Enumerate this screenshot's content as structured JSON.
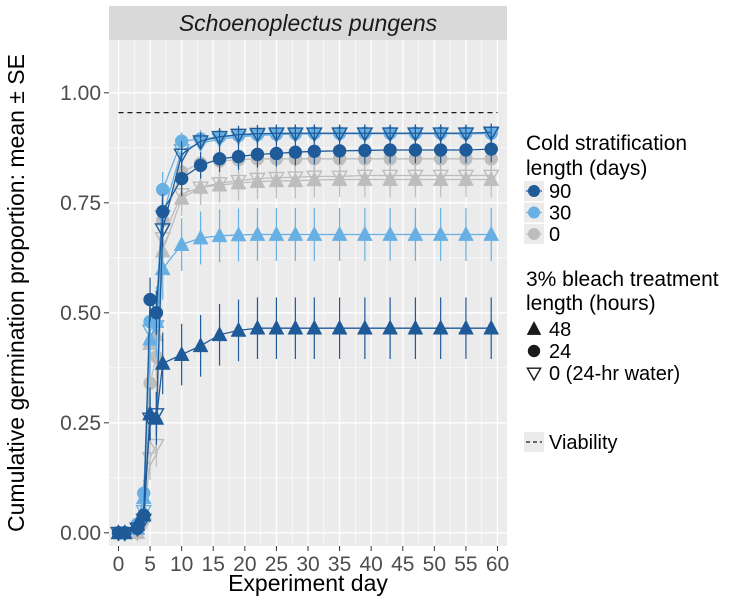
{
  "chart_data": {
    "type": "line",
    "title": "Schoenoplectus pungens",
    "xlabel": "Experiment day",
    "ylabel": "Cumulative germination proportion: mean ± SE",
    "xlim": [
      -1.5,
      61.5
    ],
    "ylim": [
      -0.03,
      1.12
    ],
    "x_ticks": [
      0,
      5,
      10,
      15,
      20,
      25,
      30,
      35,
      40,
      45,
      50,
      55,
      60
    ],
    "x_tick_labels": [
      "0",
      "5",
      "10",
      "15",
      "20",
      "25",
      "30",
      "35",
      "40",
      "45",
      "50",
      "55",
      "60"
    ],
    "y_ticks": [
      0,
      0.25,
      0.5,
      0.75,
      1.0
    ],
    "y_tick_labels": [
      "0.00",
      "0.25",
      "0.50",
      "0.75",
      "1.00"
    ],
    "viability": 0.955,
    "viability_xrange": [
      0,
      60
    ],
    "x": [
      0,
      1,
      3,
      4,
      5,
      6,
      7,
      10,
      13,
      16,
      19,
      22,
      25,
      28,
      31,
      35,
      39,
      43,
      47,
      51,
      55,
      59
    ],
    "colors": {
      "90": "#1f5a99",
      "30": "#68b0e4",
      "0": "#bdbdbd"
    },
    "series": [
      {
        "name": "90 days / 48 h",
        "cold": "90",
        "bleach": "48",
        "values": [
          0,
          0,
          0.02,
          0.04,
          0.27,
          0.26,
          0.385,
          0.405,
          0.425,
          0.45,
          0.46,
          0.465,
          0.465,
          0.465,
          0.465,
          0.465,
          0.465,
          0.465,
          0.465,
          0.465,
          0.465,
          0.465
        ],
        "se": [
          0,
          0,
          0.01,
          0.02,
          0.06,
          0.06,
          0.07,
          0.07,
          0.07,
          0.07,
          0.07,
          0.07,
          0.07,
          0.07,
          0.07,
          0.07,
          0.07,
          0.07,
          0.07,
          0.07,
          0.07,
          0.07
        ]
      },
      {
        "name": "90 days / 24 h",
        "cold": "90",
        "bleach": "24",
        "values": [
          0,
          0,
          0.01,
          0.04,
          0.53,
          0.5,
          0.73,
          0.805,
          0.835,
          0.85,
          0.855,
          0.86,
          0.862,
          0.865,
          0.867,
          0.868,
          0.869,
          0.87,
          0.87,
          0.87,
          0.87,
          0.872
        ],
        "se": [
          0,
          0,
          0.01,
          0.02,
          0.05,
          0.05,
          0.04,
          0.04,
          0.03,
          0.03,
          0.03,
          0.03,
          0.03,
          0.03,
          0.03,
          0.03,
          0.03,
          0.03,
          0.03,
          0.03,
          0.03,
          0.03
        ]
      },
      {
        "name": "90 days / 0 h (24-hr water)",
        "cold": "90",
        "bleach": "0",
        "values": [
          0,
          0,
          0.01,
          0.03,
          0.26,
          0.27,
          0.69,
          0.86,
          0.89,
          0.9,
          0.905,
          0.907,
          0.908,
          0.908,
          0.908,
          0.908,
          0.908,
          0.908,
          0.908,
          0.908,
          0.908,
          0.91
        ],
        "se": [
          0,
          0,
          0.01,
          0.02,
          0.05,
          0.05,
          0.04,
          0.03,
          0.02,
          0.02,
          0.02,
          0.02,
          0.02,
          0.02,
          0.02,
          0.02,
          0.02,
          0.02,
          0.02,
          0.02,
          0.02,
          0.02
        ]
      },
      {
        "name": "30 days / 48 h",
        "cold": "30",
        "bleach": "48",
        "values": [
          0,
          0,
          0.01,
          0.08,
          0.44,
          0.48,
          0.6,
          0.655,
          0.67,
          0.675,
          0.677,
          0.678,
          0.678,
          0.678,
          0.678,
          0.678,
          0.678,
          0.678,
          0.678,
          0.678,
          0.678,
          0.678
        ],
        "se": [
          0,
          0,
          0.01,
          0.03,
          0.08,
          0.08,
          0.07,
          0.06,
          0.06,
          0.06,
          0.06,
          0.06,
          0.06,
          0.06,
          0.06,
          0.06,
          0.06,
          0.06,
          0.06,
          0.06,
          0.06,
          0.06
        ]
      },
      {
        "name": "30 days / 24 h",
        "cold": "30",
        "bleach": "24",
        "values": [
          0,
          0,
          0.02,
          0.09,
          0.48,
          0.5,
          0.78,
          0.89,
          0.895,
          0.9,
          0.903,
          0.905,
          0.906,
          0.907,
          0.908,
          0.908,
          0.908,
          0.908,
          0.908,
          0.908,
          0.908,
          0.908
        ],
        "se": [
          0,
          0,
          0.01,
          0.03,
          0.05,
          0.05,
          0.04,
          0.02,
          0.02,
          0.02,
          0.02,
          0.02,
          0.02,
          0.02,
          0.02,
          0.02,
          0.02,
          0.02,
          0.02,
          0.02,
          0.02,
          0.02
        ]
      },
      {
        "name": "30 days / 0 h (24-hr water)",
        "cold": "30",
        "bleach": "0",
        "values": [
          0,
          0,
          0.01,
          0.05,
          0.46,
          0.47,
          0.72,
          0.87,
          0.885,
          0.895,
          0.9,
          0.903,
          0.905,
          0.906,
          0.907,
          0.907,
          0.907,
          0.907,
          0.907,
          0.907,
          0.907,
          0.907
        ],
        "se": [
          0,
          0,
          0.01,
          0.02,
          0.05,
          0.05,
          0.04,
          0.02,
          0.02,
          0.02,
          0.02,
          0.02,
          0.02,
          0.02,
          0.02,
          0.02,
          0.02,
          0.02,
          0.02,
          0.02,
          0.02,
          0.02
        ]
      },
      {
        "name": "0 days / 48 h",
        "cold": "0",
        "bleach": "48",
        "values": [
          0,
          0,
          0,
          0.05,
          0.43,
          0.45,
          0.64,
          0.76,
          0.785,
          0.79,
          0.795,
          0.798,
          0.8,
          0.8,
          0.802,
          0.803,
          0.803,
          0.803,
          0.803,
          0.803,
          0.803,
          0.803
        ],
        "se": [
          0,
          0,
          0,
          0.02,
          0.06,
          0.06,
          0.05,
          0.04,
          0.04,
          0.04,
          0.04,
          0.04,
          0.04,
          0.04,
          0.04,
          0.04,
          0.04,
          0.04,
          0.04,
          0.04,
          0.04,
          0.04
        ]
      },
      {
        "name": "0 days / 24 h",
        "cold": "0",
        "bleach": "24",
        "values": [
          0,
          0,
          0,
          0.03,
          0.34,
          0.4,
          0.71,
          0.82,
          0.84,
          0.845,
          0.848,
          0.85,
          0.85,
          0.85,
          0.85,
          0.85,
          0.85,
          0.85,
          0.85,
          0.85,
          0.85,
          0.85
        ],
        "se": [
          0,
          0,
          0,
          0.02,
          0.05,
          0.05,
          0.04,
          0.03,
          0.03,
          0.03,
          0.03,
          0.03,
          0.03,
          0.03,
          0.03,
          0.03,
          0.03,
          0.03,
          0.03,
          0.03,
          0.03,
          0.03
        ]
      },
      {
        "name": "0 days / 0 h (24-hr water)",
        "cold": "0",
        "bleach": "0",
        "values": [
          0,
          0,
          0,
          0.02,
          0.17,
          0.2,
          0.67,
          0.77,
          0.785,
          0.795,
          0.8,
          0.805,
          0.807,
          0.808,
          0.81,
          0.81,
          0.812,
          0.812,
          0.812,
          0.812,
          0.812,
          0.812
        ],
        "se": [
          0,
          0,
          0,
          0.01,
          0.05,
          0.05,
          0.05,
          0.04,
          0.03,
          0.03,
          0.03,
          0.03,
          0.03,
          0.03,
          0.03,
          0.03,
          0.03,
          0.03,
          0.03,
          0.03,
          0.03,
          0.03
        ]
      }
    ],
    "legend": {
      "cold_title_1": "Cold stratification",
      "cold_title_2": "length (days)",
      "cold_items": [
        {
          "label": "90",
          "key": "90"
        },
        {
          "label": "30",
          "key": "30"
        },
        {
          "label": "0",
          "key": "0"
        }
      ],
      "bleach_title_1": "3% bleach treatment",
      "bleach_title_2": "length (hours)",
      "bleach_items": [
        {
          "label": "48",
          "shape": "triangle"
        },
        {
          "label": "24",
          "shape": "circle"
        },
        {
          "label": "0 (24-hr water)",
          "shape": "triangle-down-open"
        }
      ],
      "viability_label": "Viability"
    }
  }
}
